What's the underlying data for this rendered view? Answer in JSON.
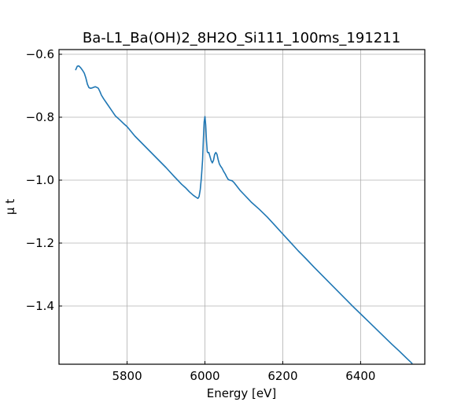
{
  "chart_data": {
    "type": "line",
    "title": "Ba-L1_Ba(OH)2_8H2O_Si111_100ms_191211",
    "xlabel": "Energy [eV]",
    "ylabel": "μ t",
    "xlim": [
      5625,
      6565
    ],
    "ylim": [
      -1.585,
      -0.585
    ],
    "xticks": [
      5800,
      6000,
      6200,
      6400
    ],
    "xtick_labels": [
      "5800",
      "6000",
      "6200",
      "6400"
    ],
    "yticks": [
      -1.4,
      -1.2,
      -1.0,
      -0.8,
      -0.6
    ],
    "ytick_labels": [
      "−1.4",
      "−1.2",
      "−1.0",
      "−0.8",
      "−0.6"
    ],
    "grid": true,
    "legend": "none",
    "series": [
      {
        "color": "#1f77b4",
        "x": [
          5668,
          5672,
          5676,
          5680,
          5685,
          5690,
          5694,
          5698,
          5702,
          5706,
          5710,
          5714,
          5718,
          5722,
          5726,
          5730,
          5734,
          5740,
          5750,
          5760,
          5770,
          5780,
          5790,
          5800,
          5810,
          5820,
          5840,
          5860,
          5880,
          5900,
          5920,
          5940,
          5950,
          5960,
          5970,
          5978,
          5982,
          5985,
          5988,
          5991,
          5994,
          5996,
          5998,
          6000,
          6002,
          6004,
          6006,
          6008,
          6010,
          6013,
          6016,
          6019,
          6022,
          6025,
          6028,
          6031,
          6034,
          6037,
          6040,
          6044,
          6048,
          6052,
          6056,
          6060,
          6064,
          6070,
          6075,
          6080,
          6090,
          6100,
          6110,
          6120,
          6140,
          6160,
          6180,
          6200,
          6220,
          6240,
          6260,
          6280,
          6300,
          6320,
          6340,
          6360,
          6380,
          6400,
          6420,
          6440,
          6460,
          6480,
          6500,
          6520,
          6532
        ],
        "y": [
          -0.649,
          -0.638,
          -0.637,
          -0.642,
          -0.65,
          -0.66,
          -0.675,
          -0.695,
          -0.706,
          -0.708,
          -0.707,
          -0.705,
          -0.703,
          -0.705,
          -0.708,
          -0.718,
          -0.73,
          -0.742,
          -0.76,
          -0.778,
          -0.796,
          -0.807,
          -0.819,
          -0.83,
          -0.845,
          -0.86,
          -0.885,
          -0.91,
          -0.935,
          -0.96,
          -0.987,
          -1.013,
          -1.024,
          -1.037,
          -1.048,
          -1.055,
          -1.058,
          -1.052,
          -1.03,
          -0.99,
          -0.935,
          -0.87,
          -0.815,
          -0.798,
          -0.825,
          -0.875,
          -0.91,
          -0.913,
          -0.912,
          -0.925,
          -0.938,
          -0.945,
          -0.937,
          -0.918,
          -0.912,
          -0.918,
          -0.935,
          -0.948,
          -0.955,
          -0.962,
          -0.972,
          -0.98,
          -0.99,
          -0.998,
          -1.0,
          -1.002,
          -1.008,
          -1.016,
          -1.032,
          -1.045,
          -1.058,
          -1.071,
          -1.093,
          -1.117,
          -1.144,
          -1.171,
          -1.198,
          -1.225,
          -1.25,
          -1.276,
          -1.301,
          -1.326,
          -1.351,
          -1.376,
          -1.401,
          -1.425,
          -1.449,
          -1.473,
          -1.497,
          -1.521,
          -1.544,
          -1.568,
          -1.582
        ]
      }
    ]
  }
}
